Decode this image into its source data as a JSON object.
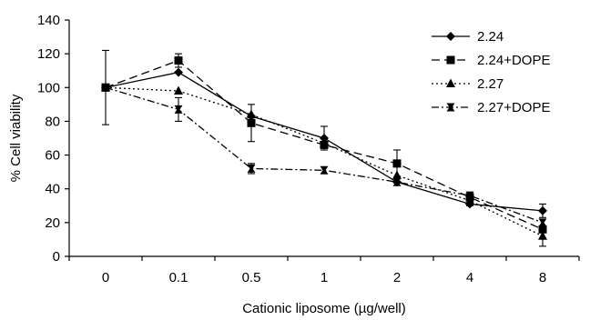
{
  "chart_data": {
    "type": "line",
    "xlabel": "Cationic liposome (µg/well)",
    "ylabel": "% Cell viability",
    "categories": [
      "0",
      "0.1",
      "0.5",
      "1",
      "2",
      "4",
      "8"
    ],
    "ylim": [
      0,
      140
    ],
    "yticks": [
      0,
      20,
      40,
      60,
      80,
      100,
      120,
      140
    ],
    "grid": false,
    "legend_position": "top-right",
    "series": [
      {
        "name": "2.24",
        "marker": "diamond",
        "dash": "solid",
        "values": [
          100,
          109,
          83,
          70,
          44,
          31,
          27
        ],
        "errors": [
          22,
          0,
          0,
          7,
          0,
          0,
          4
        ]
      },
      {
        "name": "2.24+DOPE",
        "marker": "square",
        "dash": "long-dash",
        "values": [
          100,
          116,
          79,
          66,
          55,
          35,
          16
        ],
        "errors": [
          0,
          4,
          11,
          0,
          8,
          0,
          0
        ]
      },
      {
        "name": "2.27",
        "marker": "triangle",
        "dash": "dotted",
        "values": [
          100,
          98,
          84,
          67,
          48,
          33,
          12
        ],
        "errors": [
          0,
          0,
          0,
          0,
          0,
          3,
          6
        ]
      },
      {
        "name": "2.27+DOPE",
        "marker": "bowtie",
        "dash": "dash-dot",
        "values": [
          100,
          87,
          52,
          51,
          44,
          36,
          20
        ],
        "errors": [
          0,
          7,
          3,
          0,
          0,
          0,
          0
        ]
      }
    ]
  }
}
